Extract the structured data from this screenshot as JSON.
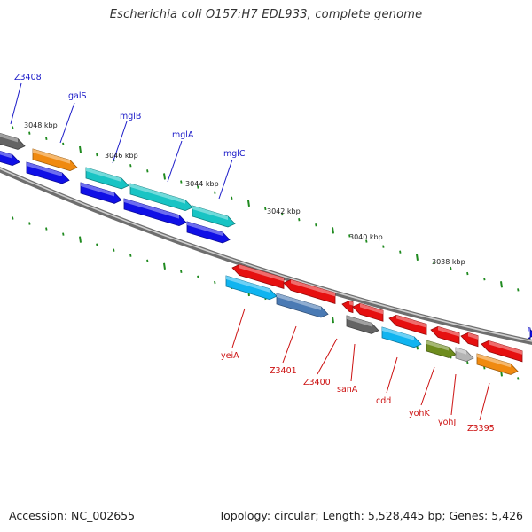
{
  "title": "Escherichia coli O157:H7 EDL933, complete genome",
  "footer": {
    "accession": "Accession: NC_002655",
    "summary": "Topology: circular; Length: 5,528,445 bp; Genes: 5,426"
  },
  "colors": {
    "backbone": "#8c8c8c",
    "tick": "#1f8a1f",
    "forward_label": "#1a1ac8",
    "reverse_label": "#cc1010",
    "blue": "#1010e6",
    "orange": "#f08a10",
    "cyan": "#18c4c4",
    "gray": "#646464",
    "red": "#e61010",
    "sky": "#10b4f0",
    "olive": "#6e8c1e",
    "steel": "#4a7ab4"
  },
  "kbp_labels": [
    "3048 kbp",
    "3046 kbp",
    "3044 kbp",
    "3042 kbp",
    "3040 kbp",
    "3038 kbp"
  ],
  "gene_labels": {
    "forward": [
      "Z3408",
      "galS",
      "mglB",
      "mglA",
      "mglC"
    ],
    "reverse": [
      "yeiA",
      "Z3401",
      "Z3400",
      "sanA",
      "cdd",
      "yohK",
      "yohJ",
      "Z3395"
    ]
  }
}
